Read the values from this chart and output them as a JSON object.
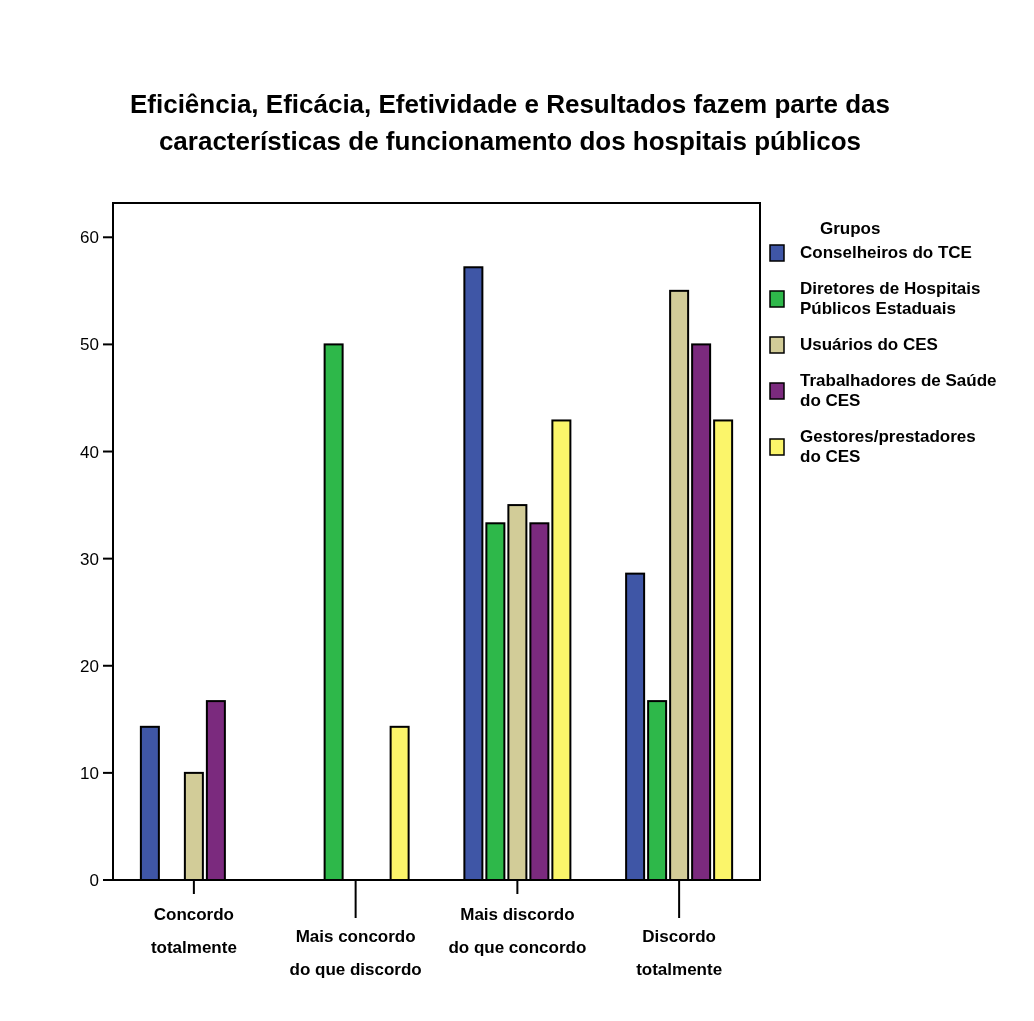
{
  "chart_data": {
    "type": "bar",
    "title": "Eficiência, Eficácia, Efetividade e Resultados fazem parte das características de funcionamento dos hospitais públicos",
    "categories": [
      "Concordo totalmente",
      "Mais concordo do que discordo",
      "Mais discordo do que concordo",
      "Discordo totalmente"
    ],
    "series": [
      {
        "name": "Conselheiros do TCE",
        "color": "#3f56a6",
        "values": [
          14.3,
          0,
          57.2,
          28.6
        ]
      },
      {
        "name": "Diretores de Hospitais Públicos Estaduais",
        "color": "#2eb84a",
        "values": [
          0,
          50,
          33.3,
          16.7
        ]
      },
      {
        "name": "Usuários do CES",
        "color": "#d2cc98",
        "values": [
          10,
          0,
          35,
          55
        ]
      },
      {
        "name": "Trabalhadores de Saúde do CES",
        "color": "#7b2a7e",
        "values": [
          16.7,
          0,
          33.3,
          50
        ]
      },
      {
        "name": "Gestores/prestadores do CES",
        "color": "#fbf56a",
        "values": [
          0,
          14.3,
          42.9,
          42.9
        ]
      }
    ],
    "ylim": [
      0,
      63.2
    ],
    "yticks": [
      0,
      10,
      20,
      30,
      40,
      50,
      60
    ],
    "grid": false,
    "legend": "right",
    "legend_title": "Grupos"
  }
}
